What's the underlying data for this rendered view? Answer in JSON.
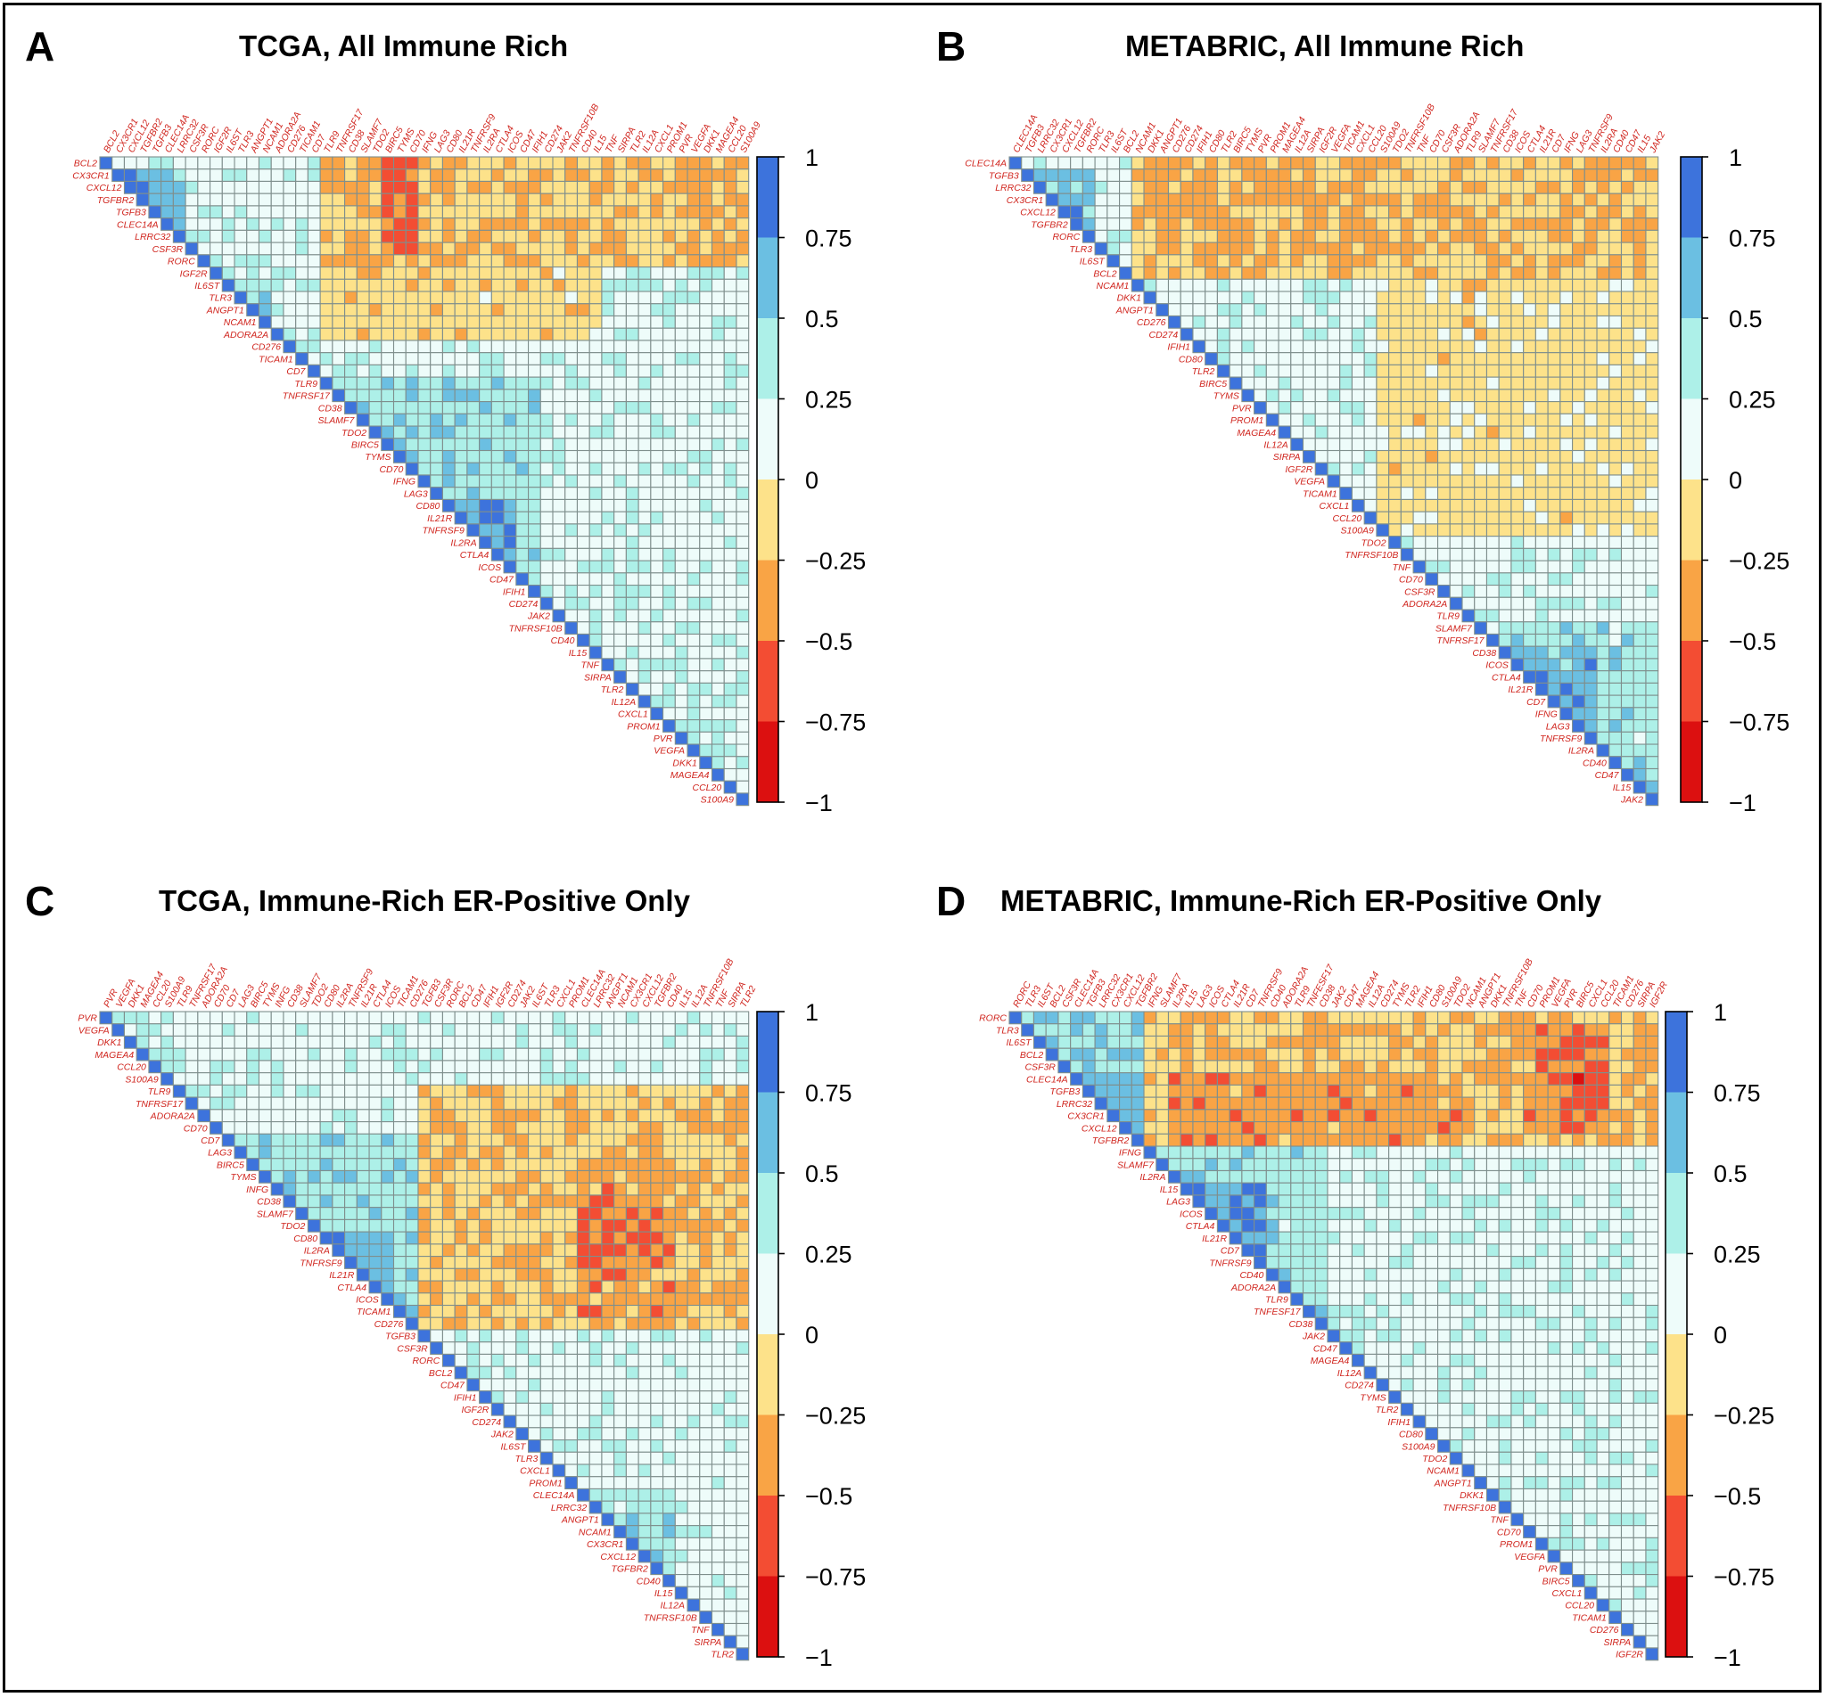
{
  "figure": {
    "panels_note": "Four lower-triangular gene-gene correlation heatmaps"
  },
  "colorbar": {
    "ticks": [
      "1",
      "0.75",
      "0.5",
      "0.25",
      "0",
      "−0.25",
      "−0.5",
      "−0.75",
      "−1"
    ],
    "bin_colors": [
      "#3d73dc",
      "#6bbfe2",
      "#adf0e8",
      "#eefcfa",
      "#fde28a",
      "#f9a445",
      "#f34d33",
      "#dc1010"
    ],
    "grid_line_color": "#7f8f8d",
    "label_color": "#d0261f"
  },
  "chart_data": [
    {
      "type": "heatmap",
      "letter": "A",
      "title": "TCGA, All Immune Rich",
      "genes": [
        "BCL2",
        "CX3CR1",
        "CXCL12",
        "TGFBR2",
        "TGFB3",
        "CLEC14A",
        "LRRC32",
        "CSF3R",
        "RORC",
        "IGF2R",
        "IL6ST",
        "TLR3",
        "ANGPT1",
        "NCAM1",
        "ADORA2A",
        "CD276",
        "TICAM1",
        "CD7",
        "TLR9",
        "TNFRSF17",
        "CD38",
        "SLAMF7",
        "TDO2",
        "BIRC5",
        "TYMS",
        "CD70",
        "IFNG",
        "LAG3",
        "CD80",
        "IL21R",
        "TNFRSF9",
        "IL2RA",
        "CTLA4",
        "ICOS",
        "CD47",
        "IFIH1",
        "CD274",
        "JAK2",
        "TNFRSF10B",
        "CD40",
        "IL15",
        "TNF",
        "SIRPA",
        "TLR2",
        "IL12A",
        "CXCL1",
        "PROM1",
        "PVR",
        "VEGFA",
        "DKK1",
        "MAGEA4",
        "CCL20",
        "S100A9"
      ],
      "correlation": "symmetric matrix of pairwise correlations over genes, range [-1, 1]; lower triangle and diagonal shown",
      "blocks": [
        {
          "rows": [
            1,
            6
          ],
          "cols": [
            1,
            6
          ],
          "value": 0.62
        },
        {
          "rows": [
            10,
            13
          ],
          "cols": [
            10,
            13
          ],
          "value": 0.38
        },
        {
          "rows": [
            18,
            35
          ],
          "cols": [
            18,
            35
          ],
          "value": 0.42
        },
        {
          "rows": [
            28,
            33
          ],
          "cols": [
            28,
            33
          ],
          "value": 0.72
        },
        {
          "rows": [
            22,
            25
          ],
          "cols": [
            22,
            25
          ],
          "value": 0.55
        },
        {
          "rows": [
            34,
            50
          ],
          "cols": [
            34,
            50
          ],
          "value": 0.22
        },
        {
          "rows": [
            18,
            52
          ],
          "cols": [
            0,
            8
          ],
          "value": -0.22
        },
        {
          "rows": [
            20,
            28
          ],
          "cols": [
            0,
            8
          ],
          "value": -0.3
        },
        {
          "rows": [
            23,
            25
          ],
          "cols": [
            0,
            7
          ],
          "value": -0.55
        },
        {
          "rows": [
            47,
            52
          ],
          "cols": [
            0,
            8
          ],
          "value": -0.3
        },
        {
          "rows": [
            18,
            40
          ],
          "cols": [
            9,
            14
          ],
          "value": -0.15
        }
      ]
    },
    {
      "type": "heatmap",
      "letter": "B",
      "title": "METABRIC, All Immune Rich",
      "genes": [
        "CLEC14A",
        "TGFB3",
        "LRRC32",
        "CX3CR1",
        "CXCL12",
        "TGFBR2",
        "RORC",
        "TLR3",
        "IL6ST",
        "BCL2",
        "NCAM1",
        "DKK1",
        "ANGPT1",
        "CD276",
        "CD274",
        "IFIH1",
        "CD80",
        "TLR2",
        "BIRC5",
        "TYMS",
        "PVR",
        "PROM1",
        "MAGEA4",
        "IL12A",
        "SIRPA",
        "IGF2R",
        "VEGFA",
        "TICAM1",
        "CXCL1",
        "CCL20",
        "S100A9",
        "TDO2",
        "TNFRSF10B",
        "TNF",
        "CD70",
        "CSF3R",
        "ADORA2A",
        "TLR9",
        "SLAMF7",
        "TNFRSF17",
        "CD38",
        "ICOS",
        "CTLA4",
        "IL21R",
        "CD7",
        "IFNG",
        "LAG3",
        "TNFRSF9",
        "IL2RA",
        "CD40",
        "CD47",
        "IL15",
        "JAK2"
      ],
      "correlation": "symmetric matrix of pairwise correlations over genes, range [-1, 1]; lower triangle and diagonal shown",
      "blocks": [
        {
          "rows": [
            1,
            6
          ],
          "cols": [
            1,
            6
          ],
          "value": 0.6
        },
        {
          "rows": [
            9,
            12
          ],
          "cols": [
            9,
            12
          ],
          "value": 0.35
        },
        {
          "rows": [
            38,
            52
          ],
          "cols": [
            38,
            52
          ],
          "value": 0.4
        },
        {
          "rows": [
            40,
            47
          ],
          "cols": [
            40,
            47
          ],
          "value": 0.65
        },
        {
          "rows": [
            10,
            52
          ],
          "cols": [
            0,
            9
          ],
          "value": -0.22
        },
        {
          "rows": [
            18,
            20
          ],
          "cols": [
            1,
            8
          ],
          "value": -0.5
        },
        {
          "rows": [
            10,
            30
          ],
          "cols": [
            0,
            8
          ],
          "value": -0.3
        },
        {
          "rows": [
            30,
            52
          ],
          "cols": [
            10,
            30
          ],
          "value": -0.1
        }
      ]
    },
    {
      "type": "heatmap",
      "letter": "C",
      "title": "TCGA, Immune-Rich ER-Positive Only",
      "genes": [
        "PVR",
        "VEGFA",
        "DKK1",
        "MAGEA4",
        "CCL20",
        "S100A9",
        "TLR9",
        "TNFRSF17",
        "ADORA2A",
        "CD70",
        "CD7",
        "LAG3",
        "BIRC5",
        "TYMS",
        "INFG",
        "CD38",
        "SLAMF7",
        "TDO2",
        "CD80",
        "IL2RA",
        "TNFRSF9",
        "IL21R",
        "CTLA4",
        "ICOS",
        "TICAM1",
        "CD276",
        "TGFB3",
        "CSF3R",
        "RORC",
        "BCL2",
        "CD47",
        "IFIH1",
        "IGF2R",
        "CD274",
        "JAK2",
        "IL6ST",
        "TLR3",
        "CXCL1",
        "PROM1",
        "CLEC14A",
        "LRRC32",
        "ANGPT1",
        "NCAM1",
        "CX3CR1",
        "CXCL12",
        "TGFBR2",
        "CD40",
        "IL15",
        "IL12A",
        "TNFRSF10B",
        "TNF",
        "SIRPA",
        "TLR2"
      ],
      "correlation": "symmetric matrix of pairwise correlations over genes, range [-1, 1]; lower triangle and diagonal shown",
      "blocks": [
        {
          "rows": [
            0,
            5
          ],
          "cols": [
            0,
            5
          ],
          "value": 0.3
        },
        {
          "rows": [
            10,
            25
          ],
          "cols": [
            10,
            25
          ],
          "value": 0.42
        },
        {
          "rows": [
            18,
            23
          ],
          "cols": [
            18,
            23
          ],
          "value": 0.7
        },
        {
          "rows": [
            39,
            46
          ],
          "cols": [
            39,
            46
          ],
          "value": 0.4
        },
        {
          "rows": [
            26,
            52
          ],
          "cols": [
            6,
            25
          ],
          "value": -0.22
        },
        {
          "rows": [
            39,
            46
          ],
          "cols": [
            12,
            24
          ],
          "value": -0.38
        },
        {
          "rows": [
            39,
            45
          ],
          "cols": [
            16,
            20
          ],
          "value": -0.5
        },
        {
          "rows": [
            26,
            38
          ],
          "cols": [
            26,
            38
          ],
          "value": 0.18
        }
      ]
    },
    {
      "type": "heatmap",
      "letter": "D",
      "title": "METABRIC, Immune-Rich ER-Positive Only",
      "genes": [
        "RORC",
        "TLR3",
        "IL6ST",
        "BCL2",
        "CSF3R",
        "CLEC14A",
        "TGFB3",
        "LRRC32",
        "CX3CR1",
        "CXCL12",
        "TGFBR2",
        "IFNG",
        "SLAMF7",
        "IL2RA",
        "IL15",
        "LAG3",
        "ICOS",
        "CTLA4",
        "IL21R",
        "CD7",
        "TNFRSF9",
        "CD40",
        "ADORA2A",
        "TLR9",
        "TNFESF17",
        "CD38",
        "JAK2",
        "CD47",
        "MAGEA4",
        "IL12A",
        "CD274",
        "TYMS",
        "TLR2",
        "IFIH1",
        "CD80",
        "S100A9",
        "TDO2",
        "NCAM1",
        "ANGPT1",
        "DKK1",
        "TNFRSF10B",
        "TNF",
        "CD70",
        "PROM1",
        "VEGFA",
        "PVR",
        "BIRC5",
        "CXCL1",
        "CCL20",
        "TICAM1",
        "CD276",
        "SIRPA",
        "IGF2R"
      ],
      "correlation": "symmetric matrix of pairwise correlations over genes, range [-1, 1]; lower triangle and diagonal shown",
      "blocks": [
        {
          "rows": [
            0,
            10
          ],
          "cols": [
            0,
            10
          ],
          "value": 0.45
        },
        {
          "rows": [
            5,
            10
          ],
          "cols": [
            5,
            10
          ],
          "value": 0.65
        },
        {
          "rows": [
            11,
            25
          ],
          "cols": [
            11,
            25
          ],
          "value": 0.4
        },
        {
          "rows": [
            14,
            20
          ],
          "cols": [
            14,
            20
          ],
          "value": 0.68
        },
        {
          "rows": [
            11,
            52
          ],
          "cols": [
            0,
            10
          ],
          "value": -0.22
        },
        {
          "rows": [
            13,
            36
          ],
          "cols": [
            5,
            10
          ],
          "value": -0.38
        },
        {
          "rows": [
            42,
            48
          ],
          "cols": [
            1,
            9
          ],
          "value": -0.4
        },
        {
          "rows": [
            45,
            48
          ],
          "cols": [
            2,
            8
          ],
          "value": -0.6
        }
      ]
    }
  ]
}
